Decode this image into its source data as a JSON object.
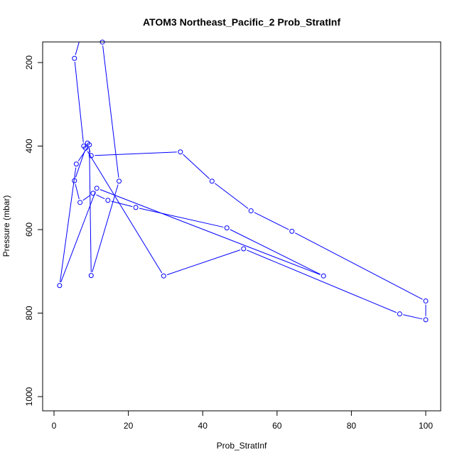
{
  "chart_data": {
    "type": "line",
    "title": "ATOM3 Northeast_Pacific_2 Prob_StratInf",
    "xlabel": "Prob_StratInf",
    "ylabel": "Pressure (mbar)",
    "xlim": [
      0,
      100
    ],
    "ylim": [
      1000,
      200
    ],
    "y_reversed": true,
    "x_ticks": [
      0,
      20,
      40,
      60,
      80,
      100
    ],
    "y_ticks": [
      200,
      400,
      600,
      800,
      1000
    ],
    "x_tick_labels": [
      "0",
      "20",
      "40",
      "60",
      "80",
      "100"
    ],
    "y_tick_labels": [
      "200",
      "400",
      "600",
      "800",
      "1000"
    ],
    "grid": false,
    "legend": "none",
    "series_color": "#0000ff",
    "marker": "open-circle",
    "series": [
      {
        "x": [
          7.5,
          5.5,
          8.0,
          9.0,
          10.0,
          34.0,
          42.5,
          53.0,
          64.0,
          100.0,
          100.0,
          93.0,
          51.0,
          29.5,
          8.5,
          5.5,
          7.0,
          10.5,
          14.5,
          22.0,
          46.5,
          72.5,
          11.5,
          1.5,
          6.0,
          9.5,
          10.0,
          17.5,
          13.0
        ],
        "y": [
          127,
          190,
          400,
          393,
          423,
          414,
          484,
          555,
          604,
          771,
          816,
          802,
          646,
          711,
          405,
          483,
          535,
          513,
          530,
          547,
          596,
          711,
          501,
          734,
          443,
          397,
          710,
          484,
          151
        ]
      }
    ]
  }
}
